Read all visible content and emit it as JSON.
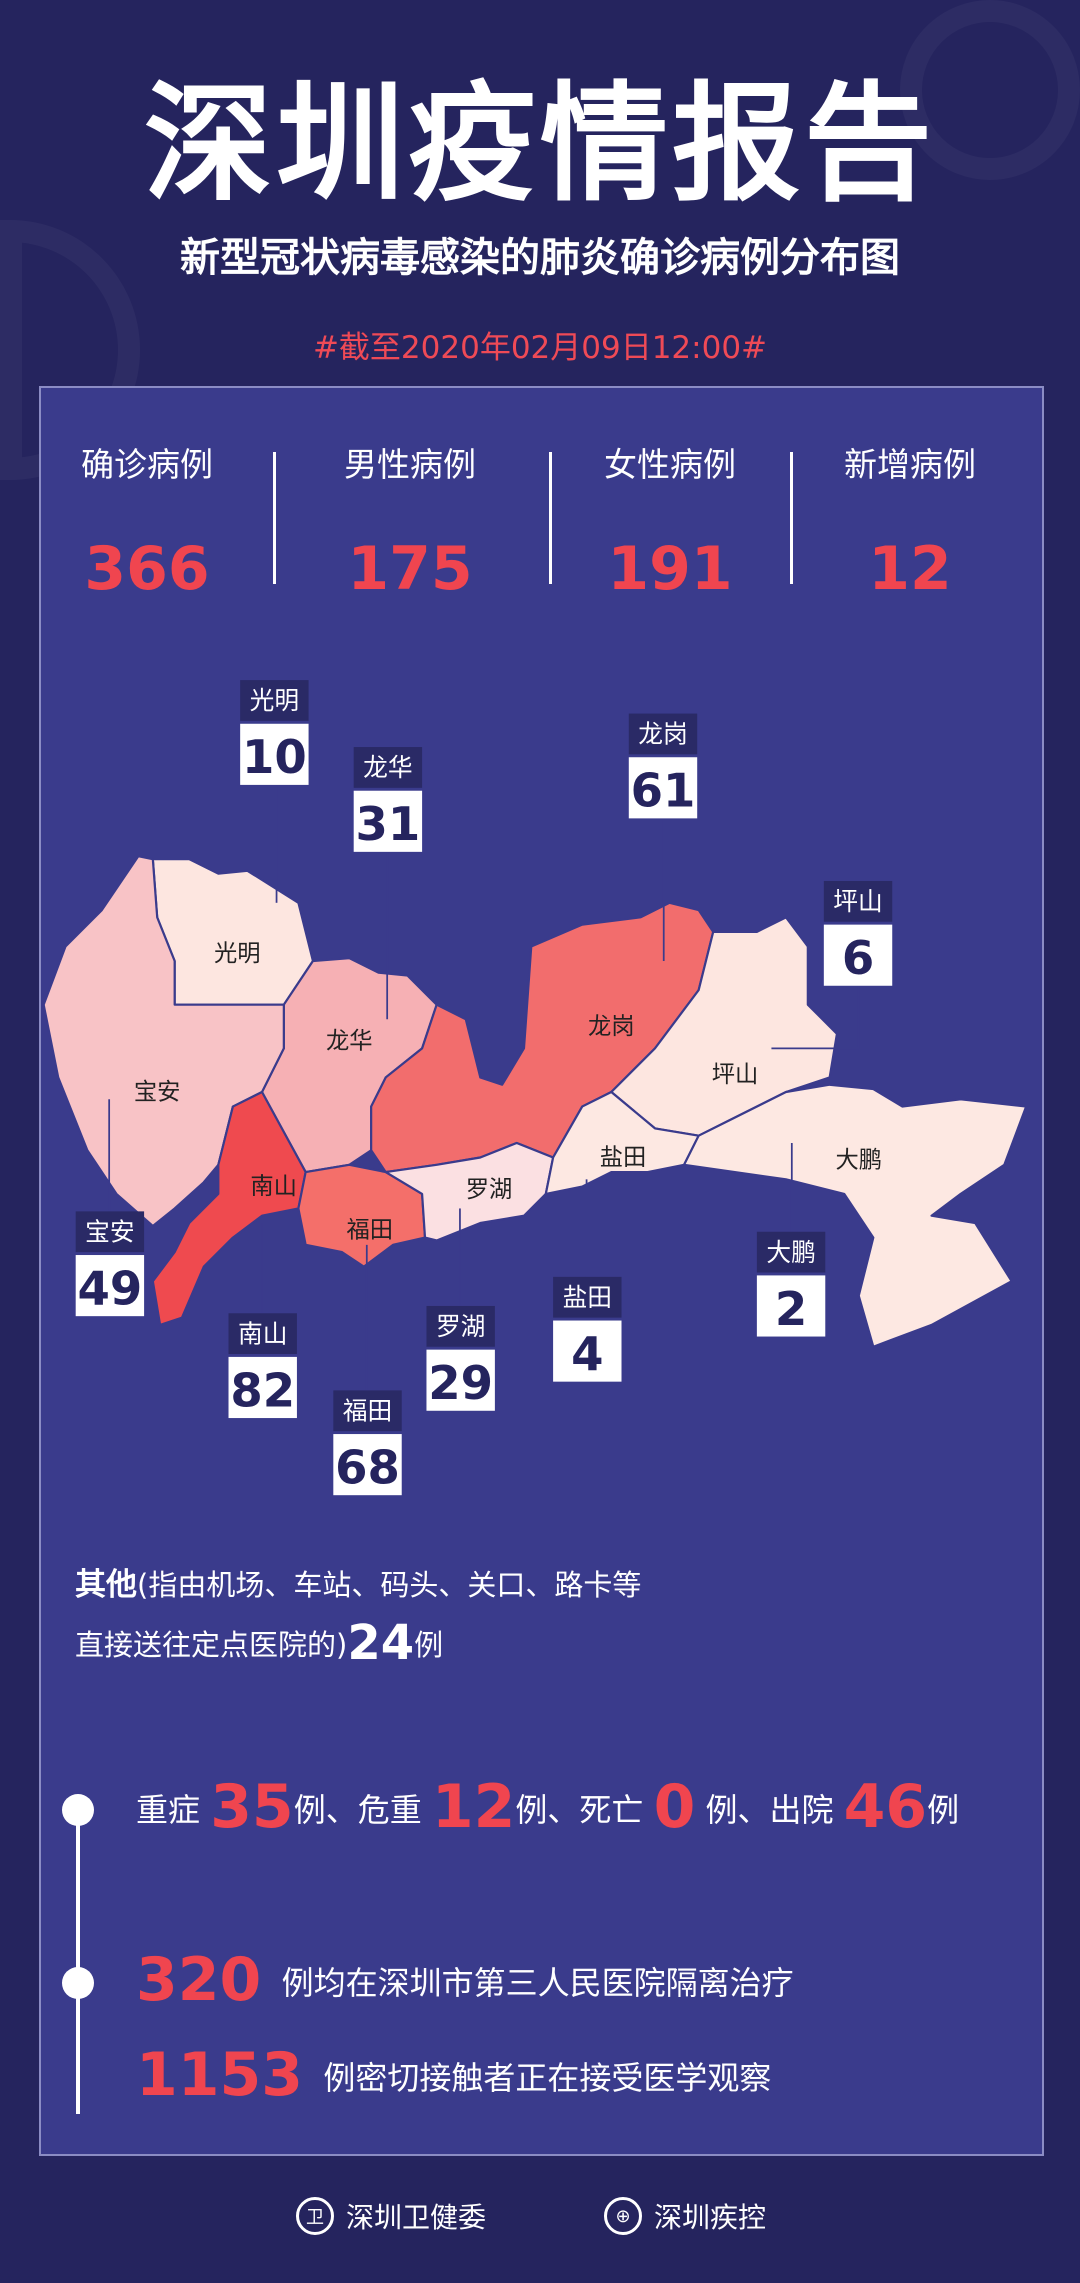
{
  "header": {
    "title": "深圳疫情报告",
    "subtitle": "新型冠状病毒感染的肺炎确诊病例分布图",
    "date": "#截至2020年02月09日12:00#"
  },
  "stats": [
    {
      "label": "确诊病例",
      "value": "366"
    },
    {
      "label": "男性病例",
      "value": "175"
    },
    {
      "label": "女性病例",
      "value": "191"
    },
    {
      "label": "新增病例",
      "value": "12"
    }
  ],
  "colors": {
    "background": "#25245e",
    "panel": "#3a3b8c",
    "accent": "#f0454f"
  },
  "districts": [
    {
      "name": "光明",
      "count": "10",
      "color": "#fde6e0"
    },
    {
      "name": "龙华",
      "count": "31",
      "color": "#f6b0b4"
    },
    {
      "name": "龙岗",
      "count": "61",
      "color": "#f26d6d"
    },
    {
      "name": "坪山",
      "count": "6",
      "color": "#fde6e0"
    },
    {
      "name": "宝安",
      "count": "49",
      "color": "#f8c3c6"
    },
    {
      "name": "南山",
      "count": "82",
      "color": "#ef4a4f"
    },
    {
      "name": "福田",
      "count": "68",
      "color": "#f46f6a"
    },
    {
      "name": "罗湖",
      "count": "29",
      "color": "#fbe0e2"
    },
    {
      "name": "盐田",
      "count": "4",
      "color": "#fde8e2"
    },
    {
      "name": "大鹏",
      "count": "2",
      "color": "#fde8e2"
    }
  ],
  "other": {
    "bold": "其他",
    "text1": "(指由机场、车站、码头、关口、路卡等",
    "text2": "直接送往定点医院的)",
    "count": "24",
    "unit": "例"
  },
  "summary": {
    "severe_label": "重症",
    "severe": "35",
    "critical_label": "例、危重",
    "critical": "12",
    "death_label": "例、死亡",
    "death": "0",
    "discharged_label": "例、出院",
    "discharged": "46",
    "unit": "例",
    "isolated": "320",
    "isolated_text": "例均在深圳市第三人民医院隔离治疗",
    "contacts": "1153",
    "contacts_text": "例密切接触者正在接受医学观察"
  },
  "footer": {
    "org1": "深圳卫健委",
    "org2": "深圳疾控"
  }
}
